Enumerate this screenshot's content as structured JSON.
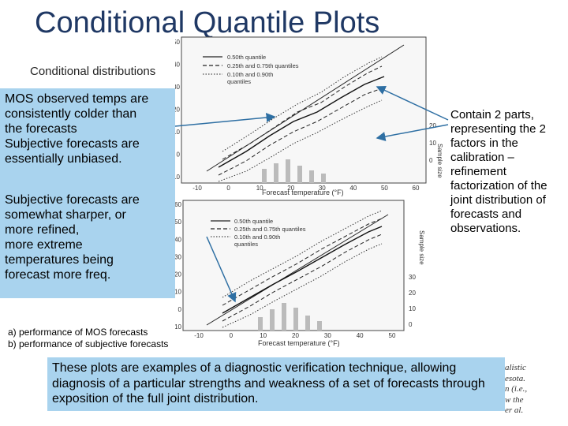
{
  "slide": {
    "title": "Conditional Quantile Plots",
    "subtitle_text": "Conditional distributions",
    "box_top": {
      "line1": "MOS observed temps are",
      "line2": "consistently colder than",
      "line3": "the forecasts",
      "line4": "Subjective forecasts are",
      "line5": "essentially unbiased."
    },
    "box_mid": {
      "line1": "Subjective forecasts are",
      "line2": "somewhat sharper, or",
      "line3": "more refined,",
      "line4": "more extreme",
      "line5": "temperatures being",
      "line6": "forecast more freq."
    },
    "right_text": "Contain 2 parts, representing the 2 factors in the calibration – refinement factorization of the joint distribution of forecasts and observations.",
    "caption_a": "a)   performance of MOS forecasts",
    "caption_b": "b)   performance of subjective forecasts",
    "bottom_text": "These plots are examples of a diagnostic verification technique, allowing diagnosis of a particular strengths and weakness of a set of forecasts through exposition of the full joint distribution.",
    "fragments": [
      "alistic",
      "esota.",
      "n (i.e.,",
      "w the",
      "er al."
    ]
  },
  "plots": {
    "top": {
      "legend": [
        "0.50th quantile",
        "0.25th and 0.75th quantiles",
        "0.10th and 0.90th",
        "quantiles"
      ],
      "xlabel": "Forecast temperature (°F)",
      "x_ticks": [
        "-10",
        "0",
        "10",
        "20",
        "30",
        "40",
        "50",
        "60"
      ],
      "y_ticks": [
        "50",
        "40",
        "30",
        "20",
        "10",
        "0",
        "-10"
      ],
      "right_ticks": [
        "20",
        "10",
        "0"
      ],
      "right_label": "Sample size"
    },
    "bottom": {
      "legend": [
        "0.50th quantile",
        "0.25th and 0.75th quantiles",
        "0.10th and 0.90th",
        "quantiles"
      ],
      "xlabel": "Forecast temperature (°F)",
      "x_ticks": [
        "-10",
        "0",
        "10",
        "20",
        "30",
        "40",
        "50"
      ],
      "y_ticks": [
        "60",
        "50",
        "40",
        "30",
        "20",
        "10",
        "0",
        "-10"
      ],
      "right_ticks": [
        "30",
        "20",
        "10",
        "0"
      ],
      "right_label": "Sample size"
    }
  },
  "colors": {
    "title": "#1f3864",
    "box": "#a9d3ee",
    "arrow": "#2e6fa3"
  }
}
